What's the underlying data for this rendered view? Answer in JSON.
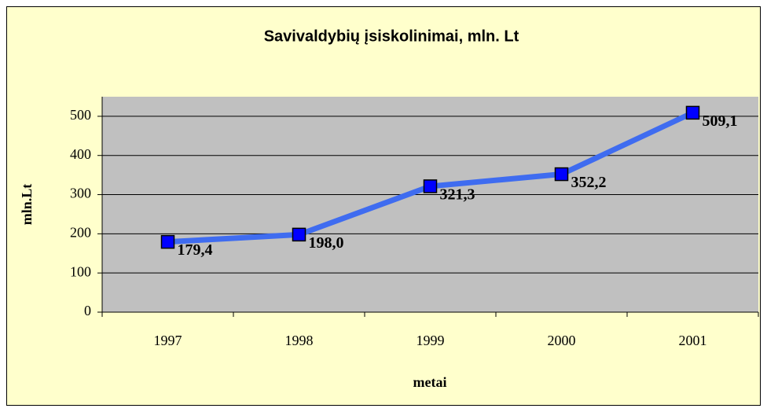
{
  "chart_data": {
    "type": "line",
    "title": "Savivaldybių įsiskolinimai, mln. Lt",
    "x_label": "metai",
    "y_label": "mln.Lt",
    "categories": [
      "1997",
      "1998",
      "1999",
      "2000",
      "2001"
    ],
    "values": [
      179.4,
      198.0,
      321.3,
      352.2,
      509.1
    ],
    "value_labels": [
      "179,4",
      "198,0",
      "321,3",
      "352,2",
      "509,1"
    ],
    "color": "#3f6cf0",
    "marker_color": "#0000ff",
    "ylim": [
      0,
      550
    ],
    "yticks": [
      0,
      100,
      200,
      300,
      400,
      500
    ],
    "grid": true
  }
}
